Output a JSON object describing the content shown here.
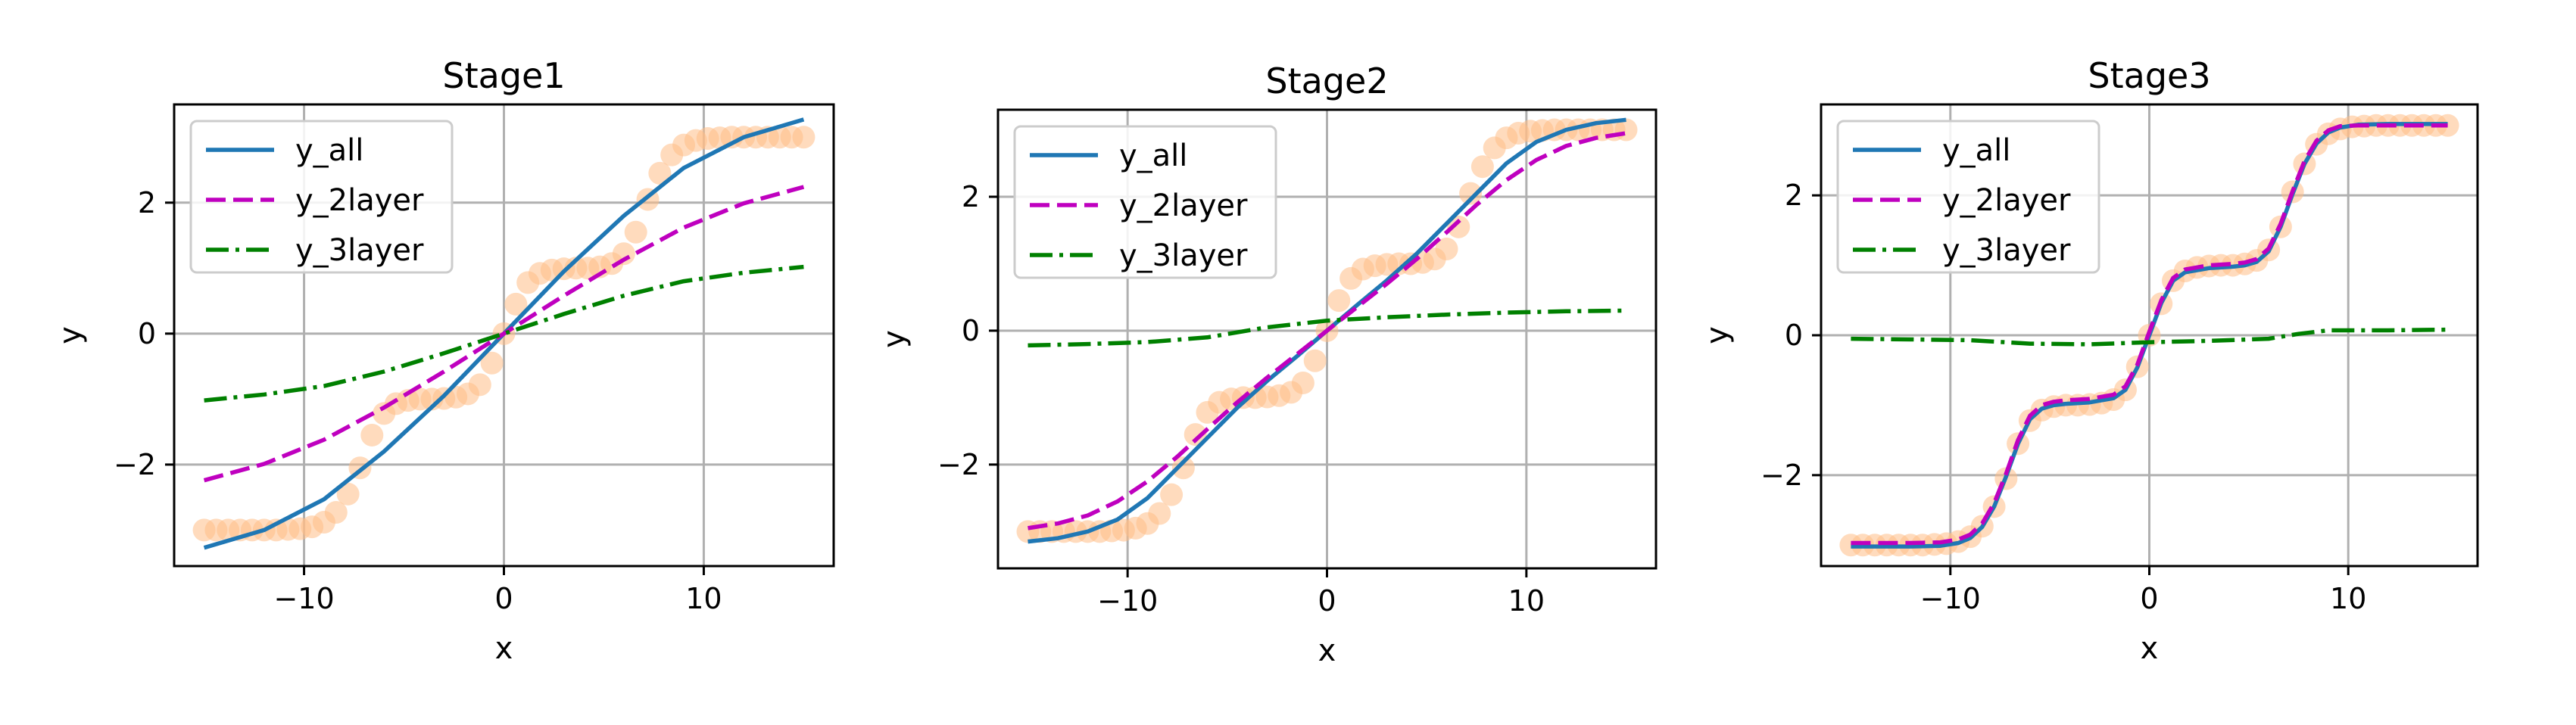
{
  "chart_data": [
    {
      "type": "line",
      "title": "Stage1",
      "xlabel": "x",
      "ylabel": "y",
      "xlim": [
        -16.5,
        16.5
      ],
      "ylim": [
        -3.55,
        3.5
      ],
      "xticks": [
        -10,
        0,
        10
      ],
      "yticks": [
        -2,
        0,
        2
      ],
      "xtick_labels": [
        "−10",
        "0",
        "10"
      ],
      "ytick_labels": [
        "−2",
        "0",
        "2"
      ],
      "grid": true,
      "legend": "top-left",
      "target_points": {
        "name": "",
        "color": "#ffbe86",
        "x": [
          -15,
          -14.4,
          -13.8,
          -13.2,
          -12.6,
          -12,
          -11.4,
          -10.8,
          -10.2,
          -9.6,
          -9,
          -8.4,
          -7.8,
          -7.2,
          -6.6,
          -6,
          -5.4,
          -4.8,
          -4.2,
          -3.6,
          -3,
          -2.4,
          -1.8,
          -1.2,
          -0.6,
          0,
          0.6,
          1.2,
          1.8,
          2.4,
          3,
          3.6,
          4.2,
          4.8,
          5.4,
          6,
          6.6,
          7.2,
          7.8,
          8.4,
          9,
          9.6,
          10.2,
          10.8,
          11.4,
          12,
          12.6,
          13.2,
          13.8,
          14.4,
          15
        ],
        "y": [
          -3,
          -3,
          -3,
          -3,
          -3,
          -3,
          -3,
          -2.99,
          -2.98,
          -2.95,
          -2.88,
          -2.73,
          -2.45,
          -2.05,
          -1.55,
          -1.22,
          -1.07,
          -1.02,
          -1,
          -1,
          -0.99,
          -0.97,
          -0.92,
          -0.78,
          -0.45,
          0,
          0.45,
          0.78,
          0.92,
          0.97,
          0.99,
          1,
          1,
          1.02,
          1.07,
          1.22,
          1.55,
          2.05,
          2.45,
          2.73,
          2.88,
          2.95,
          2.98,
          2.99,
          3,
          3,
          3,
          3,
          3,
          3,
          3
        ]
      },
      "series": [
        {
          "name": "y_all",
          "color": "#1f77b4",
          "style": "solid",
          "x": [
            -15,
            -12,
            -9,
            -6,
            -3,
            0,
            3,
            6,
            9,
            12,
            15
          ],
          "y": [
            -3.27,
            -3.0,
            -2.53,
            -1.8,
            -0.95,
            0,
            0.95,
            1.8,
            2.53,
            3.0,
            3.27
          ]
        },
        {
          "name": "y_2layer",
          "color": "#bf00bf",
          "style": "dashed",
          "x": [
            -15,
            -12,
            -9,
            -6,
            -3,
            0,
            3,
            6,
            9,
            12,
            15
          ],
          "y": [
            -2.24,
            -1.99,
            -1.62,
            -1.13,
            -0.58,
            0,
            0.58,
            1.13,
            1.62,
            1.99,
            2.24
          ]
        },
        {
          "name": "y_3layer",
          "color": "#008000",
          "style": "dashdot",
          "x": [
            -15,
            -12,
            -9,
            -6,
            -3,
            0,
            3,
            6,
            9,
            12,
            15
          ],
          "y": [
            -1.02,
            -0.93,
            -0.8,
            -0.58,
            -0.3,
            0,
            0.3,
            0.58,
            0.8,
            0.93,
            1.02
          ]
        }
      ]
    },
    {
      "type": "line",
      "title": "Stage2",
      "xlabel": "x",
      "ylabel": "y",
      "xlim": [
        -16.5,
        16.5
      ],
      "ylim": [
        -3.55,
        3.3
      ],
      "xticks": [
        -10,
        0,
        10
      ],
      "yticks": [
        -2,
        0,
        2
      ],
      "xtick_labels": [
        "−10",
        "0",
        "10"
      ],
      "ytick_labels": [
        "−2",
        "0",
        "2"
      ],
      "grid": true,
      "legend": "top-left",
      "target_points": {
        "name": "",
        "color": "#ffbe86",
        "x": [
          -15,
          -14.4,
          -13.8,
          -13.2,
          -12.6,
          -12,
          -11.4,
          -10.8,
          -10.2,
          -9.6,
          -9,
          -8.4,
          -7.8,
          -7.2,
          -6.6,
          -6,
          -5.4,
          -4.8,
          -4.2,
          -3.6,
          -3,
          -2.4,
          -1.8,
          -1.2,
          -0.6,
          0,
          0.6,
          1.2,
          1.8,
          2.4,
          3,
          3.6,
          4.2,
          4.8,
          5.4,
          6,
          6.6,
          7.2,
          7.8,
          8.4,
          9,
          9.6,
          10.2,
          10.8,
          11.4,
          12,
          12.6,
          13.2,
          13.8,
          14.4,
          15
        ],
        "y": [
          -3,
          -3,
          -3,
          -3,
          -3,
          -3,
          -3,
          -2.99,
          -2.98,
          -2.95,
          -2.88,
          -2.73,
          -2.45,
          -2.05,
          -1.55,
          -1.22,
          -1.07,
          -1.02,
          -1,
          -1,
          -0.99,
          -0.97,
          -0.92,
          -0.78,
          -0.45,
          0,
          0.45,
          0.78,
          0.92,
          0.97,
          0.99,
          1,
          1,
          1.02,
          1.07,
          1.22,
          1.55,
          2.05,
          2.45,
          2.73,
          2.88,
          2.95,
          2.98,
          2.99,
          3,
          3,
          3,
          3,
          3,
          3,
          3
        ]
      },
      "series": [
        {
          "name": "y_all",
          "color": "#1f77b4",
          "style": "solid",
          "x": [
            -15,
            -13.5,
            -12,
            -10.5,
            -9,
            -7.5,
            -6,
            -4.5,
            -3,
            -1.5,
            0,
            1.5,
            3,
            4.5,
            6,
            7.5,
            9,
            10.5,
            12,
            13.5,
            15
          ],
          "y": [
            -3.15,
            -3.1,
            -3.0,
            -2.82,
            -2.5,
            -2.05,
            -1.6,
            -1.15,
            -0.75,
            -0.38,
            0,
            0.38,
            0.75,
            1.15,
            1.6,
            2.05,
            2.5,
            2.82,
            3.0,
            3.1,
            3.15
          ]
        },
        {
          "name": "y_2layer",
          "color": "#bf00bf",
          "style": "dashed",
          "x": [
            -15,
            -13.5,
            -12,
            -10.5,
            -9,
            -7.5,
            -6,
            -4.5,
            -3,
            -1.5,
            0,
            1.5,
            3,
            4.5,
            6,
            7.5,
            9,
            10.5,
            12,
            13.5,
            15
          ],
          "y": [
            -2.95,
            -2.88,
            -2.76,
            -2.55,
            -2.25,
            -1.88,
            -1.47,
            -1.07,
            -0.7,
            -0.35,
            0,
            0.35,
            0.7,
            1.07,
            1.47,
            1.88,
            2.25,
            2.55,
            2.76,
            2.88,
            2.95
          ]
        },
        {
          "name": "y_3layer",
          "color": "#008000",
          "style": "dashdot",
          "x": [
            -15,
            -12,
            -9,
            -6,
            -3,
            0,
            3,
            6,
            9,
            12,
            15
          ],
          "y": [
            -0.22,
            -0.2,
            -0.17,
            -0.1,
            0.05,
            0.15,
            0.2,
            0.24,
            0.27,
            0.29,
            0.3
          ]
        }
      ]
    },
    {
      "type": "line",
      "title": "Stage3",
      "xlabel": "x",
      "ylabel": "y",
      "xlim": [
        -16.5,
        16.5
      ],
      "ylim": [
        -3.3,
        3.3
      ],
      "xticks": [
        -10,
        0,
        10
      ],
      "yticks": [
        -2,
        0,
        2
      ],
      "xtick_labels": [
        "−10",
        "0",
        "10"
      ],
      "ytick_labels": [
        "−2",
        "0",
        "2"
      ],
      "grid": true,
      "legend": "top-left",
      "target_points": {
        "name": "",
        "color": "#ffbe86",
        "x": [
          -15,
          -14.4,
          -13.8,
          -13.2,
          -12.6,
          -12,
          -11.4,
          -10.8,
          -10.2,
          -9.6,
          -9,
          -8.4,
          -7.8,
          -7.2,
          -6.6,
          -6,
          -5.4,
          -4.8,
          -4.2,
          -3.6,
          -3,
          -2.4,
          -1.8,
          -1.2,
          -0.6,
          0,
          0.6,
          1.2,
          1.8,
          2.4,
          3,
          3.6,
          4.2,
          4.8,
          5.4,
          6,
          6.6,
          7.2,
          7.8,
          8.4,
          9,
          9.6,
          10.2,
          10.8,
          11.4,
          12,
          12.6,
          13.2,
          13.8,
          14.4,
          15
        ],
        "y": [
          -3,
          -3,
          -3,
          -3,
          -3,
          -3,
          -3,
          -2.99,
          -2.98,
          -2.95,
          -2.88,
          -2.73,
          -2.45,
          -2.05,
          -1.55,
          -1.22,
          -1.07,
          -1.02,
          -1,
          -1,
          -0.99,
          -0.97,
          -0.92,
          -0.78,
          -0.45,
          0,
          0.45,
          0.78,
          0.92,
          0.97,
          0.99,
          1,
          1,
          1.02,
          1.07,
          1.22,
          1.55,
          2.05,
          2.45,
          2.73,
          2.88,
          2.95,
          2.98,
          2.99,
          3,
          3,
          3,
          3,
          3,
          3,
          3
        ]
      },
      "series": [
        {
          "name": "y_all",
          "color": "#1f77b4",
          "style": "solid",
          "x": [
            -15,
            -13.5,
            -12,
            -10.5,
            -9.6,
            -9,
            -8.4,
            -7.8,
            -7.2,
            -6.6,
            -6,
            -5.4,
            -4.8,
            -4.2,
            -3,
            -1.8,
            -1.2,
            -0.6,
            0,
            0.6,
            1.2,
            1.8,
            3,
            4.2,
            4.8,
            5.4,
            6,
            6.6,
            7.2,
            7.8,
            8.4,
            9,
            9.6,
            10.5,
            12,
            13.5,
            15
          ],
          "y": [
            -3.02,
            -3.02,
            -3.02,
            -3.01,
            -2.97,
            -2.9,
            -2.74,
            -2.45,
            -2.02,
            -1.55,
            -1.2,
            -1.05,
            -1.0,
            -0.98,
            -0.96,
            -0.9,
            -0.78,
            -0.46,
            0,
            0.46,
            0.78,
            0.9,
            0.96,
            0.98,
            1.0,
            1.05,
            1.2,
            1.55,
            2.02,
            2.45,
            2.74,
            2.9,
            2.97,
            3.01,
            3.02,
            3.02,
            3.02
          ]
        },
        {
          "name": "y_2layer",
          "color": "#bf00bf",
          "style": "dashed",
          "x": [
            -15,
            -13.5,
            -12,
            -10.5,
            -9.6,
            -9,
            -8.4,
            -7.8,
            -7.2,
            -6.6,
            -6,
            -5.4,
            -4.8,
            -4.2,
            -3,
            -1.8,
            -1.2,
            -0.6,
            0,
            0.6,
            1.2,
            1.8,
            3,
            4.2,
            4.8,
            5.4,
            6,
            6.6,
            7.2,
            7.8,
            8.4,
            9,
            9.6,
            10.5,
            12,
            13.5,
            15
          ],
          "y": [
            -2.97,
            -2.97,
            -2.97,
            -2.96,
            -2.92,
            -2.85,
            -2.69,
            -2.4,
            -1.98,
            -1.5,
            -1.15,
            -1.0,
            -0.95,
            -0.93,
            -0.91,
            -0.85,
            -0.73,
            -0.42,
            0.05,
            0.5,
            0.82,
            0.94,
            1.0,
            1.02,
            1.04,
            1.09,
            1.24,
            1.59,
            2.06,
            2.49,
            2.78,
            2.93,
            2.99,
            3.0,
            3.0,
            3.0,
            3.0
          ]
        },
        {
          "name": "y_3layer",
          "color": "#008000",
          "style": "dashdot",
          "x": [
            -15,
            -12,
            -9,
            -6,
            -3,
            0,
            3,
            6,
            7.5,
            9,
            12,
            15
          ],
          "y": [
            -0.05,
            -0.06,
            -0.07,
            -0.12,
            -0.13,
            -0.1,
            -0.08,
            -0.05,
            0.02,
            0.07,
            0.07,
            0.08
          ]
        }
      ]
    }
  ]
}
